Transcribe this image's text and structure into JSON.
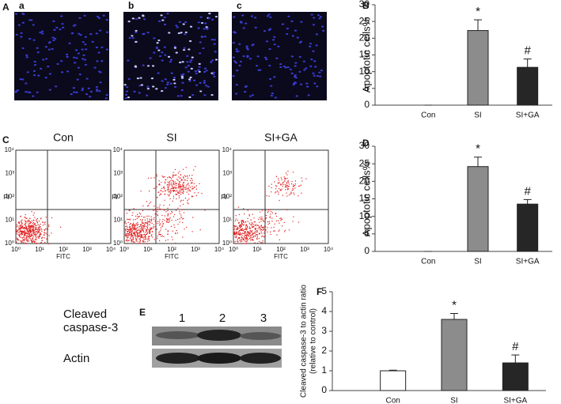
{
  "panel_labels": [
    "A",
    "B",
    "C",
    "D",
    "E",
    "F"
  ],
  "micrographs": [
    "a",
    "b",
    "c"
  ],
  "flow": {
    "titles": [
      "Con",
      "SI",
      "SI+GA"
    ],
    "x_label": "FITC",
    "y_label": "PI",
    "ticks": [
      "10⁰",
      "10¹",
      "10²",
      "10³",
      "10⁴"
    ]
  },
  "blot": {
    "lanes": [
      "1",
      "2",
      "3"
    ],
    "rows": [
      [
        "Cleaved",
        "caspase-3"
      ],
      [
        "Actin"
      ]
    ]
  },
  "chart_data": [
    {
      "type": "bar",
      "y_label": [
        "Apoptotic cells%"
      ],
      "categories": [
        "Con",
        "SI",
        "SI+GA"
      ],
      "values": [
        0,
        22.3,
        11.3
      ],
      "errors": [
        0,
        3.2,
        2.5
      ],
      "markers": [
        null,
        "*",
        "#"
      ],
      "colors": [
        "#ffffff",
        "#8c8c8c",
        "#262626"
      ],
      "ylim": [
        0,
        30
      ],
      "yticks": [
        0,
        5,
        10,
        15,
        20,
        25,
        30
      ]
    },
    {
      "type": "bar",
      "y_label": [
        "Apoptotic cells%"
      ],
      "categories": [
        "Con",
        "SI",
        "SI+GA"
      ],
      "values": [
        0,
        24.2,
        13.5
      ],
      "errors": [
        0,
        2.7,
        1.3
      ],
      "markers": [
        null,
        "*",
        "#"
      ],
      "colors": [
        "#ffffff",
        "#8c8c8c",
        "#262626"
      ],
      "ylim": [
        0,
        30
      ],
      "yticks": [
        0,
        5,
        10,
        15,
        20,
        25,
        30
      ]
    },
    {
      "type": "bar",
      "y_label": [
        "Cleaved caspase-3 to actin ratio",
        "(relative to control)"
      ],
      "categories": [
        "Con",
        "SI",
        "SI+GA"
      ],
      "values": [
        1.0,
        3.6,
        1.4
      ],
      "errors": [
        0.03,
        0.3,
        0.4
      ],
      "markers": [
        null,
        "*",
        "#"
      ],
      "colors": [
        "#ffffff",
        "#8c8c8c",
        "#262626"
      ],
      "ylim": [
        0,
        5
      ],
      "yticks": [
        0,
        1,
        2,
        3,
        4,
        5
      ]
    }
  ]
}
